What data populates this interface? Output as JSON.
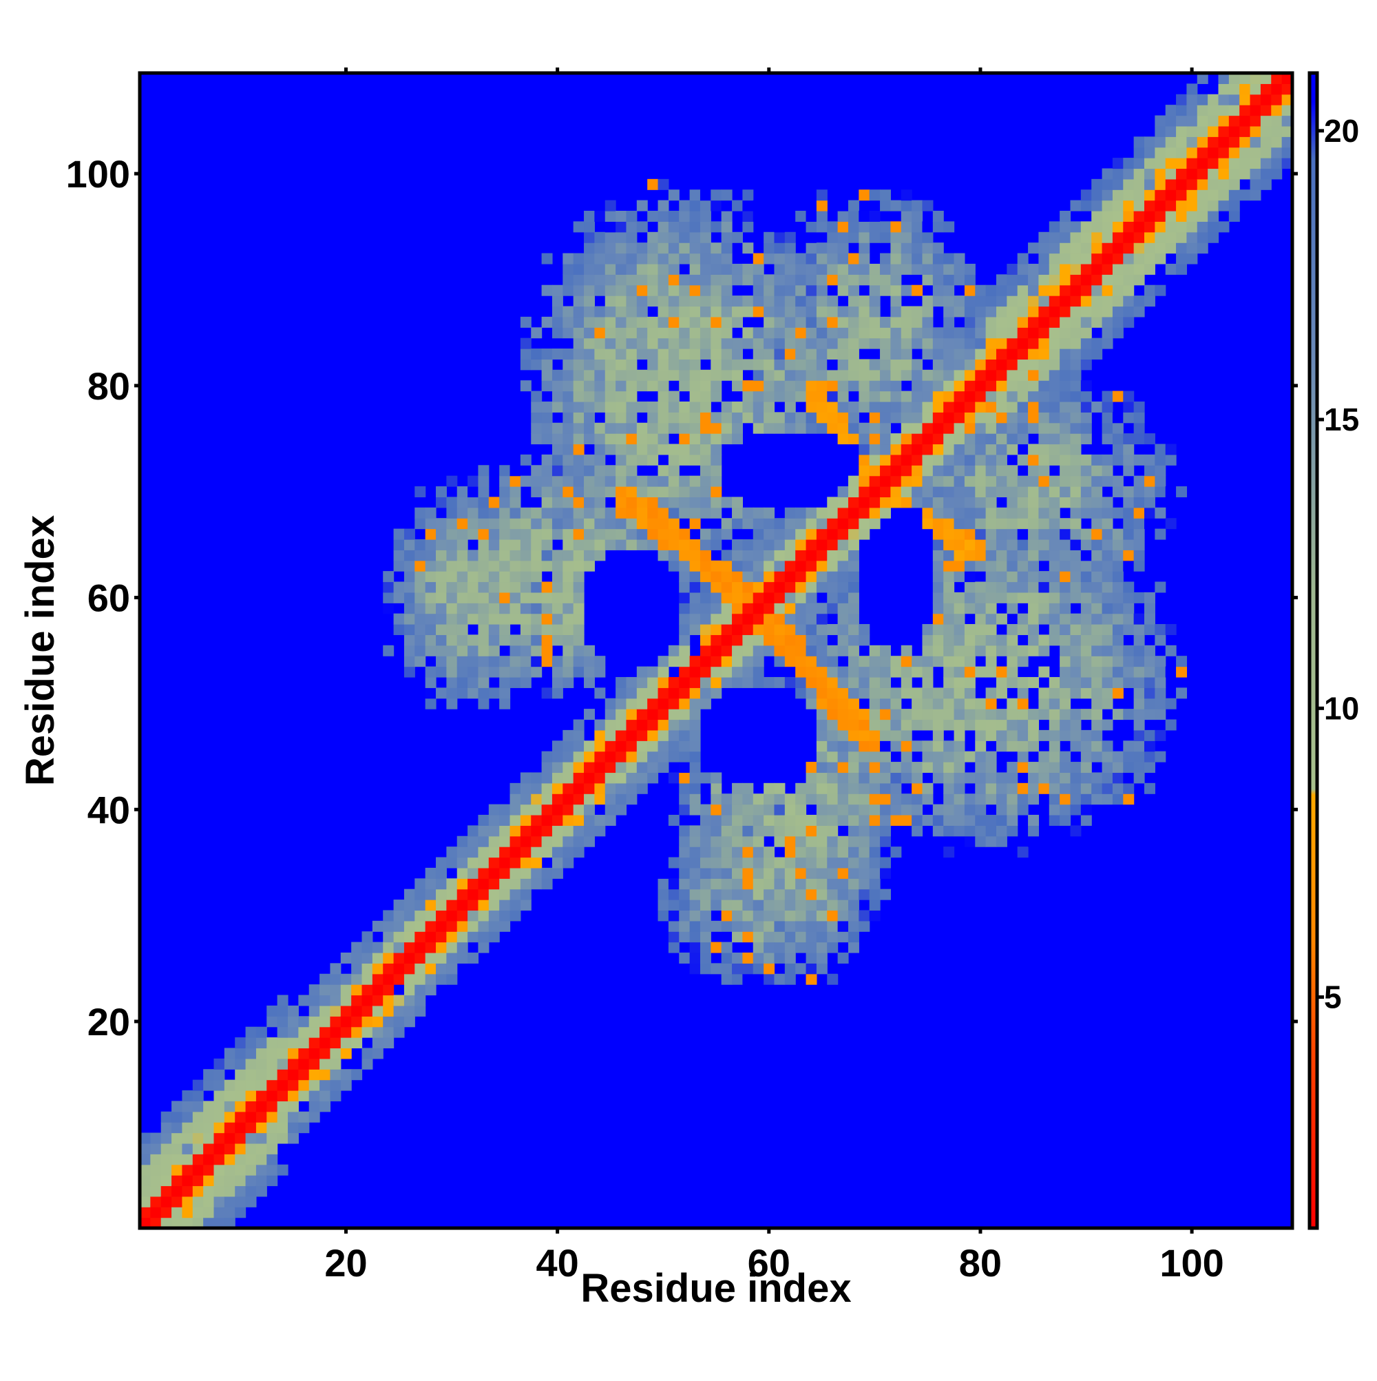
{
  "chart_data": {
    "type": "heatmap",
    "title": "",
    "xlabel": "Residue index",
    "ylabel": "Residue index",
    "x_range": [
      1,
      109
    ],
    "y_range": [
      1,
      109
    ],
    "x_ticks": [
      20,
      40,
      60,
      80,
      100
    ],
    "y_ticks": [
      20,
      40,
      60,
      80,
      100
    ],
    "colorbar": {
      "range": [
        1,
        21
      ],
      "ticks": [
        5,
        10,
        15,
        20
      ],
      "stops": [
        {
          "value": 1,
          "color": "#ff0000"
        },
        {
          "value": 4,
          "color": "#ff4400"
        },
        {
          "value": 6,
          "color": "#ff8800"
        },
        {
          "value": 8.5,
          "color": "#ffaa00"
        },
        {
          "value": 8.6,
          "color": "#a8c08c"
        },
        {
          "value": 12,
          "color": "#9fb890"
        },
        {
          "value": 16,
          "color": "#6a8ab8"
        },
        {
          "value": 19.5,
          "color": "#4a70c0"
        },
        {
          "value": 20.5,
          "color": "#0000ff"
        }
      ]
    },
    "background_value": 21,
    "contact_features": [
      {
        "kind": "diagonal",
        "center_offset": 0,
        "min_value": 1,
        "width": 1.2
      },
      {
        "kind": "diagonal_band",
        "value": 6,
        "half_width": 3
      },
      {
        "kind": "diagonal_band",
        "value": 12,
        "half_width": 6
      },
      {
        "kind": "blob",
        "x": 52,
        "y": 80,
        "rx": 14,
        "ry": 17,
        "value": 12
      },
      {
        "kind": "blob",
        "x": 80,
        "y": 52,
        "rx": 17,
        "ry": 14,
        "value": 12
      },
      {
        "kind": "blob",
        "x": 40,
        "y": 62,
        "rx": 12,
        "ry": 10,
        "value": 12
      },
      {
        "kind": "blob",
        "x": 62,
        "y": 40,
        "rx": 10,
        "ry": 12,
        "value": 12
      },
      {
        "kind": "blob",
        "x": 70,
        "y": 85,
        "rx": 10,
        "ry": 12,
        "value": 13
      },
      {
        "kind": "blob",
        "x": 85,
        "y": 70,
        "rx": 12,
        "ry": 10,
        "value": 13
      },
      {
        "kind": "blob",
        "x": 60,
        "y": 32,
        "rx": 10,
        "ry": 8,
        "value": 13
      },
      {
        "kind": "blob",
        "x": 32,
        "y": 60,
        "rx": 8,
        "ry": 10,
        "value": 13
      },
      {
        "kind": "antidiagonal",
        "x0": 46,
        "y0": 70,
        "x1": 60,
        "y1": 58,
        "value": 6
      },
      {
        "kind": "antidiagonal",
        "x0": 58,
        "y0": 60,
        "x1": 70,
        "y1": 46,
        "value": 6
      },
      {
        "kind": "antidiagonal",
        "x0": 64,
        "y0": 80,
        "x1": 70,
        "y1": 70,
        "value": 7
      },
      {
        "kind": "antidiagonal",
        "x0": 70,
        "y0": 70,
        "x1": 80,
        "y1": 64,
        "value": 7
      },
      {
        "kind": "hole",
        "x": 47,
        "y": 59,
        "rx": 5,
        "ry": 6
      },
      {
        "kind": "hole",
        "x": 59,
        "y": 47,
        "rx": 6,
        "ry": 5
      },
      {
        "kind": "hole",
        "x": 72,
        "y": 62,
        "rx": 4,
        "ry": 7
      },
      {
        "kind": "hole",
        "x": 62,
        "y": 72,
        "rx": 7,
        "ry": 4
      }
    ]
  }
}
